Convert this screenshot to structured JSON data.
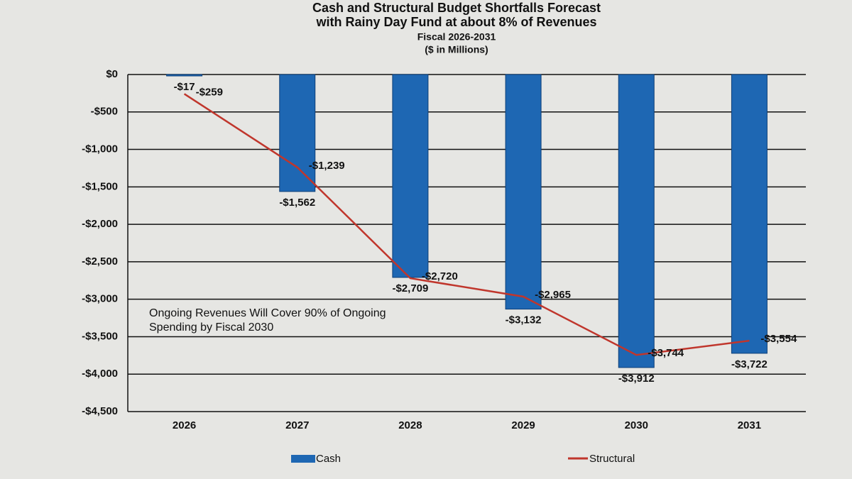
{
  "chart_data": {
    "type": "bar",
    "title": [
      "Cash and Structural Budget Shortfalls Forecast",
      "with Rainy Day Fund at about 8% of Revenues"
    ],
    "subtitle": [
      "Fiscal 2026-2031",
      "($ in Millions)"
    ],
    "annotation": [
      "Ongoing Revenues Will Cover 90% of Ongoing",
      "Spending by Fiscal 2030"
    ],
    "categories": [
      "2026",
      "2027",
      "2028",
      "2029",
      "2030",
      "2031"
    ],
    "series": [
      {
        "name": "Cash",
        "type": "bar",
        "color": "#1e67b3",
        "values": [
          -17,
          -1562,
          -2709,
          -3132,
          -3912,
          -3722
        ],
        "value_labels": [
          "-$17",
          "-$1,562",
          "-$2,709",
          "-$3,132",
          "-$3,912",
          "-$3,722"
        ]
      },
      {
        "name": "Structural",
        "type": "line",
        "color": "#c0362c",
        "values": [
          -259,
          -1239,
          -2720,
          -2965,
          -3744,
          -3554
        ],
        "value_labels": [
          "-$259",
          "-$1,239",
          "-$2,720",
          "-$2,965",
          "-$3,744",
          "-$3,554"
        ]
      }
    ],
    "ylim": [
      -4500,
      0
    ],
    "yticks": [
      {
        "value": 0,
        "label": "$0"
      },
      {
        "value": -500,
        "label": "-$500"
      },
      {
        "value": -1000,
        "label": "-$1,000"
      },
      {
        "value": -1500,
        "label": "-$1,500"
      },
      {
        "value": -2000,
        "label": "-$2,000"
      },
      {
        "value": -2500,
        "label": "-$2,500"
      },
      {
        "value": -3000,
        "label": "-$3,000"
      },
      {
        "value": -3500,
        "label": "-$3,500"
      },
      {
        "value": -4000,
        "label": "-$4,000"
      },
      {
        "value": -4500,
        "label": "-$4,500"
      }
    ],
    "grid": true,
    "legend": "bottom"
  }
}
